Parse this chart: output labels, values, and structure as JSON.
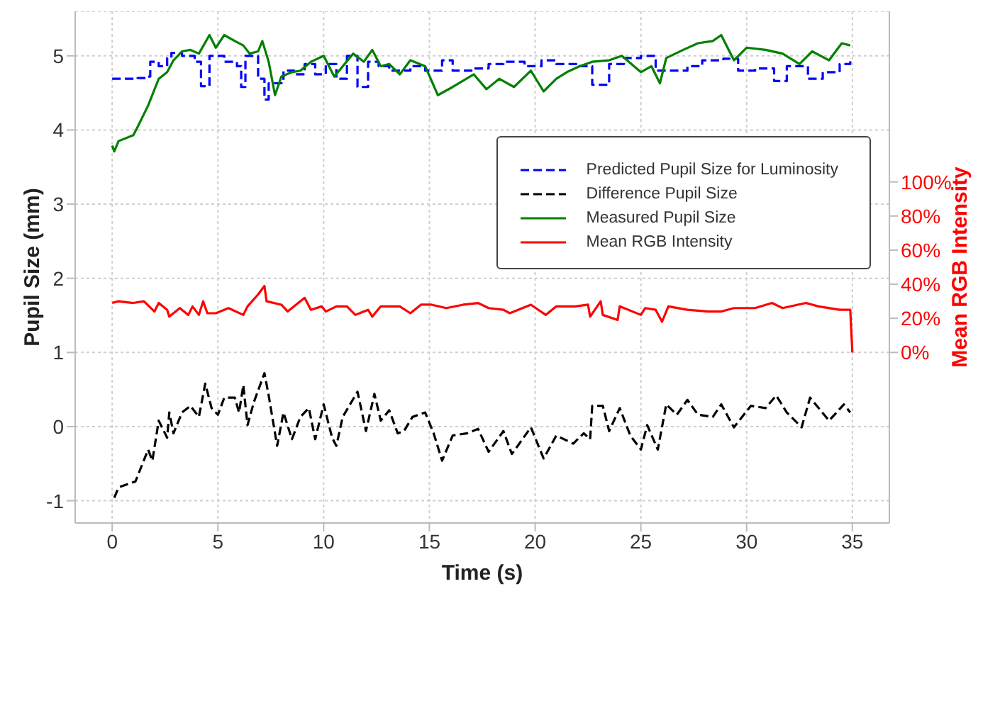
{
  "chart_data": {
    "type": "line",
    "xlabel": "Time (s)",
    "ylabel": "Pupil Size (mm)",
    "y2label": "Mean RGB Intensity",
    "xlim": [
      -1.75,
      36.75
    ],
    "xticks": [
      0,
      5,
      10,
      15,
      20,
      25,
      30,
      35
    ],
    "ylim": [
      -1.3,
      5.6
    ],
    "yticks": [
      -1,
      0,
      1,
      2,
      3,
      4,
      5
    ],
    "y2lim": [
      -100,
      200
    ],
    "y2ticks": [
      {
        "value": 0,
        "label": "0%"
      },
      {
        "value": 20,
        "label": "20%"
      },
      {
        "value": 40,
        "label": "40%"
      },
      {
        "value": 60,
        "label": "60%"
      },
      {
        "value": 80,
        "label": "80%"
      },
      {
        "value": 100,
        "label": "100%"
      }
    ],
    "grid": true,
    "legend": "top right",
    "series": [
      {
        "name": "Predicted Pupil Size for Luminosity",
        "type": "step",
        "color": "#0000ff",
        "line_style": "dashed",
        "x": [
          0.0,
          1.2,
          1.7,
          1.8,
          2.2,
          2.6,
          2.8,
          3.3,
          3.9,
          4.2,
          4.6,
          5.3,
          5.9,
          6.1,
          6.3,
          6.9,
          7.2,
          7.4,
          8.1,
          8.6,
          9.1,
          9.6,
          10.1,
          10.6,
          11.1,
          11.6,
          12.1,
          12.6,
          13.1,
          14.1,
          14.8,
          15.6,
          16.1,
          17.1,
          17.8,
          18.5,
          19.5,
          20.3,
          21.0,
          22.0,
          22.7,
          23.5,
          24.2,
          25.0,
          25.7,
          26.5,
          27.2,
          27.9,
          28.9,
          29.6,
          30.4,
          31.3,
          31.9,
          32.9,
          33.6,
          34.4,
          34.9
        ],
        "values": [
          4.69,
          4.7,
          4.72,
          4.92,
          4.86,
          4.97,
          5.04,
          5.0,
          4.92,
          4.59,
          5.0,
          4.92,
          4.86,
          4.58,
          5.0,
          4.69,
          4.41,
          4.63,
          4.8,
          4.75,
          4.89,
          4.75,
          4.89,
          4.69,
          5.0,
          4.58,
          4.92,
          4.86,
          4.8,
          4.86,
          4.8,
          4.94,
          4.8,
          4.83,
          4.89,
          4.92,
          4.86,
          4.94,
          4.89,
          4.86,
          4.61,
          4.89,
          4.97,
          5.0,
          4.8,
          4.8,
          4.86,
          4.94,
          4.96,
          4.8,
          4.83,
          4.66,
          4.86,
          4.69,
          4.78,
          4.89,
          4.93
        ]
      },
      {
        "name": "Difference Pupil Size",
        "type": "line",
        "color": "#000000",
        "line_style": "dashed",
        "x": [
          0.1,
          0.3,
          1.1,
          1.7,
          1.9,
          2.2,
          2.6,
          2.7,
          2.9,
          3.3,
          3.7,
          4.1,
          4.4,
          4.7,
          5.0,
          5.3,
          5.8,
          6.0,
          6.2,
          6.4,
          6.7,
          7.2,
          7.4,
          7.8,
          8.1,
          8.5,
          8.9,
          9.3,
          9.6,
          10.0,
          10.4,
          10.6,
          10.9,
          11.6,
          12.0,
          12.4,
          12.7,
          13.1,
          13.5,
          13.8,
          14.2,
          14.8,
          15.2,
          15.6,
          16.1,
          16.8,
          17.3,
          17.8,
          18.5,
          18.9,
          19.8,
          20.4,
          21.0,
          21.8,
          22.3,
          22.6,
          22.7,
          23.2,
          23.5,
          24.0,
          24.5,
          25.0,
          25.3,
          25.8,
          26.2,
          26.7,
          27.2,
          27.7,
          28.4,
          28.8,
          29.4,
          30.2,
          30.9,
          31.4,
          31.9,
          32.6,
          33.0,
          33.9,
          34.6,
          34.9
        ],
        "values": [
          -0.96,
          -0.82,
          -0.74,
          -0.31,
          -0.46,
          0.08,
          -0.15,
          0.19,
          -0.09,
          0.19,
          0.28,
          0.13,
          0.58,
          0.25,
          0.16,
          0.39,
          0.39,
          0.19,
          0.56,
          0.02,
          0.33,
          0.72,
          0.42,
          -0.26,
          0.19,
          -0.17,
          0.13,
          0.25,
          -0.17,
          0.3,
          -0.15,
          -0.26,
          0.13,
          0.47,
          -0.06,
          0.44,
          0.08,
          0.22,
          -0.09,
          -0.06,
          0.13,
          0.19,
          -0.09,
          -0.46,
          -0.12,
          -0.09,
          -0.03,
          -0.34,
          -0.06,
          -0.37,
          -0.01,
          -0.43,
          -0.12,
          -0.23,
          -0.09,
          -0.17,
          0.28,
          0.28,
          -0.06,
          0.25,
          -0.12,
          -0.31,
          0.02,
          -0.31,
          0.3,
          0.16,
          0.36,
          0.16,
          0.13,
          0.3,
          -0.01,
          0.28,
          0.25,
          0.42,
          0.19,
          -0.01,
          0.39,
          0.08,
          0.3,
          0.19
        ]
      },
      {
        "name": "Measured Pupil Size",
        "type": "line",
        "color": "#008000",
        "line_style": "solid",
        "x": [
          0.0,
          0.1,
          0.3,
          1.0,
          1.2,
          1.7,
          2.2,
          2.6,
          2.9,
          3.3,
          3.7,
          4.1,
          4.6,
          4.9,
          5.3,
          5.8,
          6.2,
          6.5,
          6.9,
          7.1,
          7.4,
          7.7,
          8.0,
          8.5,
          8.9,
          9.4,
          10.0,
          10.5,
          11.4,
          11.9,
          12.3,
          12.7,
          13.1,
          13.6,
          14.1,
          14.8,
          15.4,
          16.1,
          17.1,
          17.7,
          18.3,
          19.0,
          19.8,
          20.4,
          21.0,
          21.5,
          22.1,
          22.7,
          23.5,
          24.1,
          25.0,
          25.5,
          25.9,
          26.2,
          27.0,
          27.7,
          28.4,
          28.8,
          29.4,
          30.0,
          30.9,
          31.7,
          32.5,
          33.1,
          33.9,
          34.5,
          34.9
        ],
        "values": [
          3.79,
          3.71,
          3.85,
          3.93,
          4.04,
          4.33,
          4.69,
          4.78,
          4.94,
          5.06,
          5.08,
          5.03,
          5.28,
          5.11,
          5.28,
          5.2,
          5.14,
          5.03,
          5.06,
          5.2,
          4.92,
          4.47,
          4.72,
          4.78,
          4.8,
          4.92,
          5.0,
          4.72,
          5.03,
          4.92,
          5.08,
          4.86,
          4.89,
          4.75,
          4.94,
          4.86,
          4.47,
          4.58,
          4.75,
          4.55,
          4.69,
          4.58,
          4.8,
          4.52,
          4.69,
          4.78,
          4.86,
          4.92,
          4.94,
          5.0,
          4.78,
          4.86,
          4.63,
          4.97,
          5.08,
          5.17,
          5.2,
          5.28,
          4.94,
          5.11,
          5.08,
          5.03,
          4.89,
          5.06,
          4.94,
          5.17,
          5.14
        ]
      },
      {
        "name": "Mean RGB Intensity",
        "type": "line",
        "axis": "y2",
        "color": "#ff0000",
        "line_style": "solid",
        "x": [
          0.0,
          0.3,
          1.0,
          1.5,
          2.0,
          2.2,
          2.6,
          2.7,
          3.2,
          3.6,
          3.8,
          4.1,
          4.3,
          4.5,
          4.9,
          5.5,
          6.2,
          6.4,
          6.9,
          7.2,
          7.3,
          8.0,
          8.3,
          8.6,
          9.1,
          9.4,
          9.9,
          10.1,
          10.6,
          11.1,
          11.5,
          12.1,
          12.3,
          12.7,
          13.6,
          14.1,
          14.6,
          15.1,
          15.8,
          16.6,
          17.3,
          17.8,
          18.5,
          18.8,
          19.4,
          19.8,
          20.5,
          21.0,
          21.9,
          22.5,
          22.6,
          23.1,
          23.2,
          23.9,
          24.0,
          25.0,
          25.2,
          25.7,
          26.0,
          26.3,
          27.2,
          28.2,
          28.8,
          29.4,
          30.4,
          31.2,
          31.7,
          32.8,
          33.4,
          34.4,
          34.9,
          35.0
        ],
        "values": [
          29,
          30,
          29,
          30,
          24,
          29,
          25,
          21,
          26,
          22,
          27,
          22,
          30,
          23,
          23,
          26,
          22,
          27,
          34,
          39,
          30,
          28,
          24,
          27,
          32,
          25,
          27,
          24,
          27,
          27,
          22,
          25,
          21,
          27,
          27,
          23,
          28,
          28,
          26,
          28,
          29,
          26,
          25,
          23,
          26,
          28,
          22,
          27,
          27,
          28,
          21,
          30,
          22,
          19,
          27,
          22,
          26,
          25,
          18,
          27,
          25,
          24,
          24,
          26,
          26,
          29,
          26,
          29,
          27,
          25,
          25,
          0
        ]
      }
    ]
  }
}
